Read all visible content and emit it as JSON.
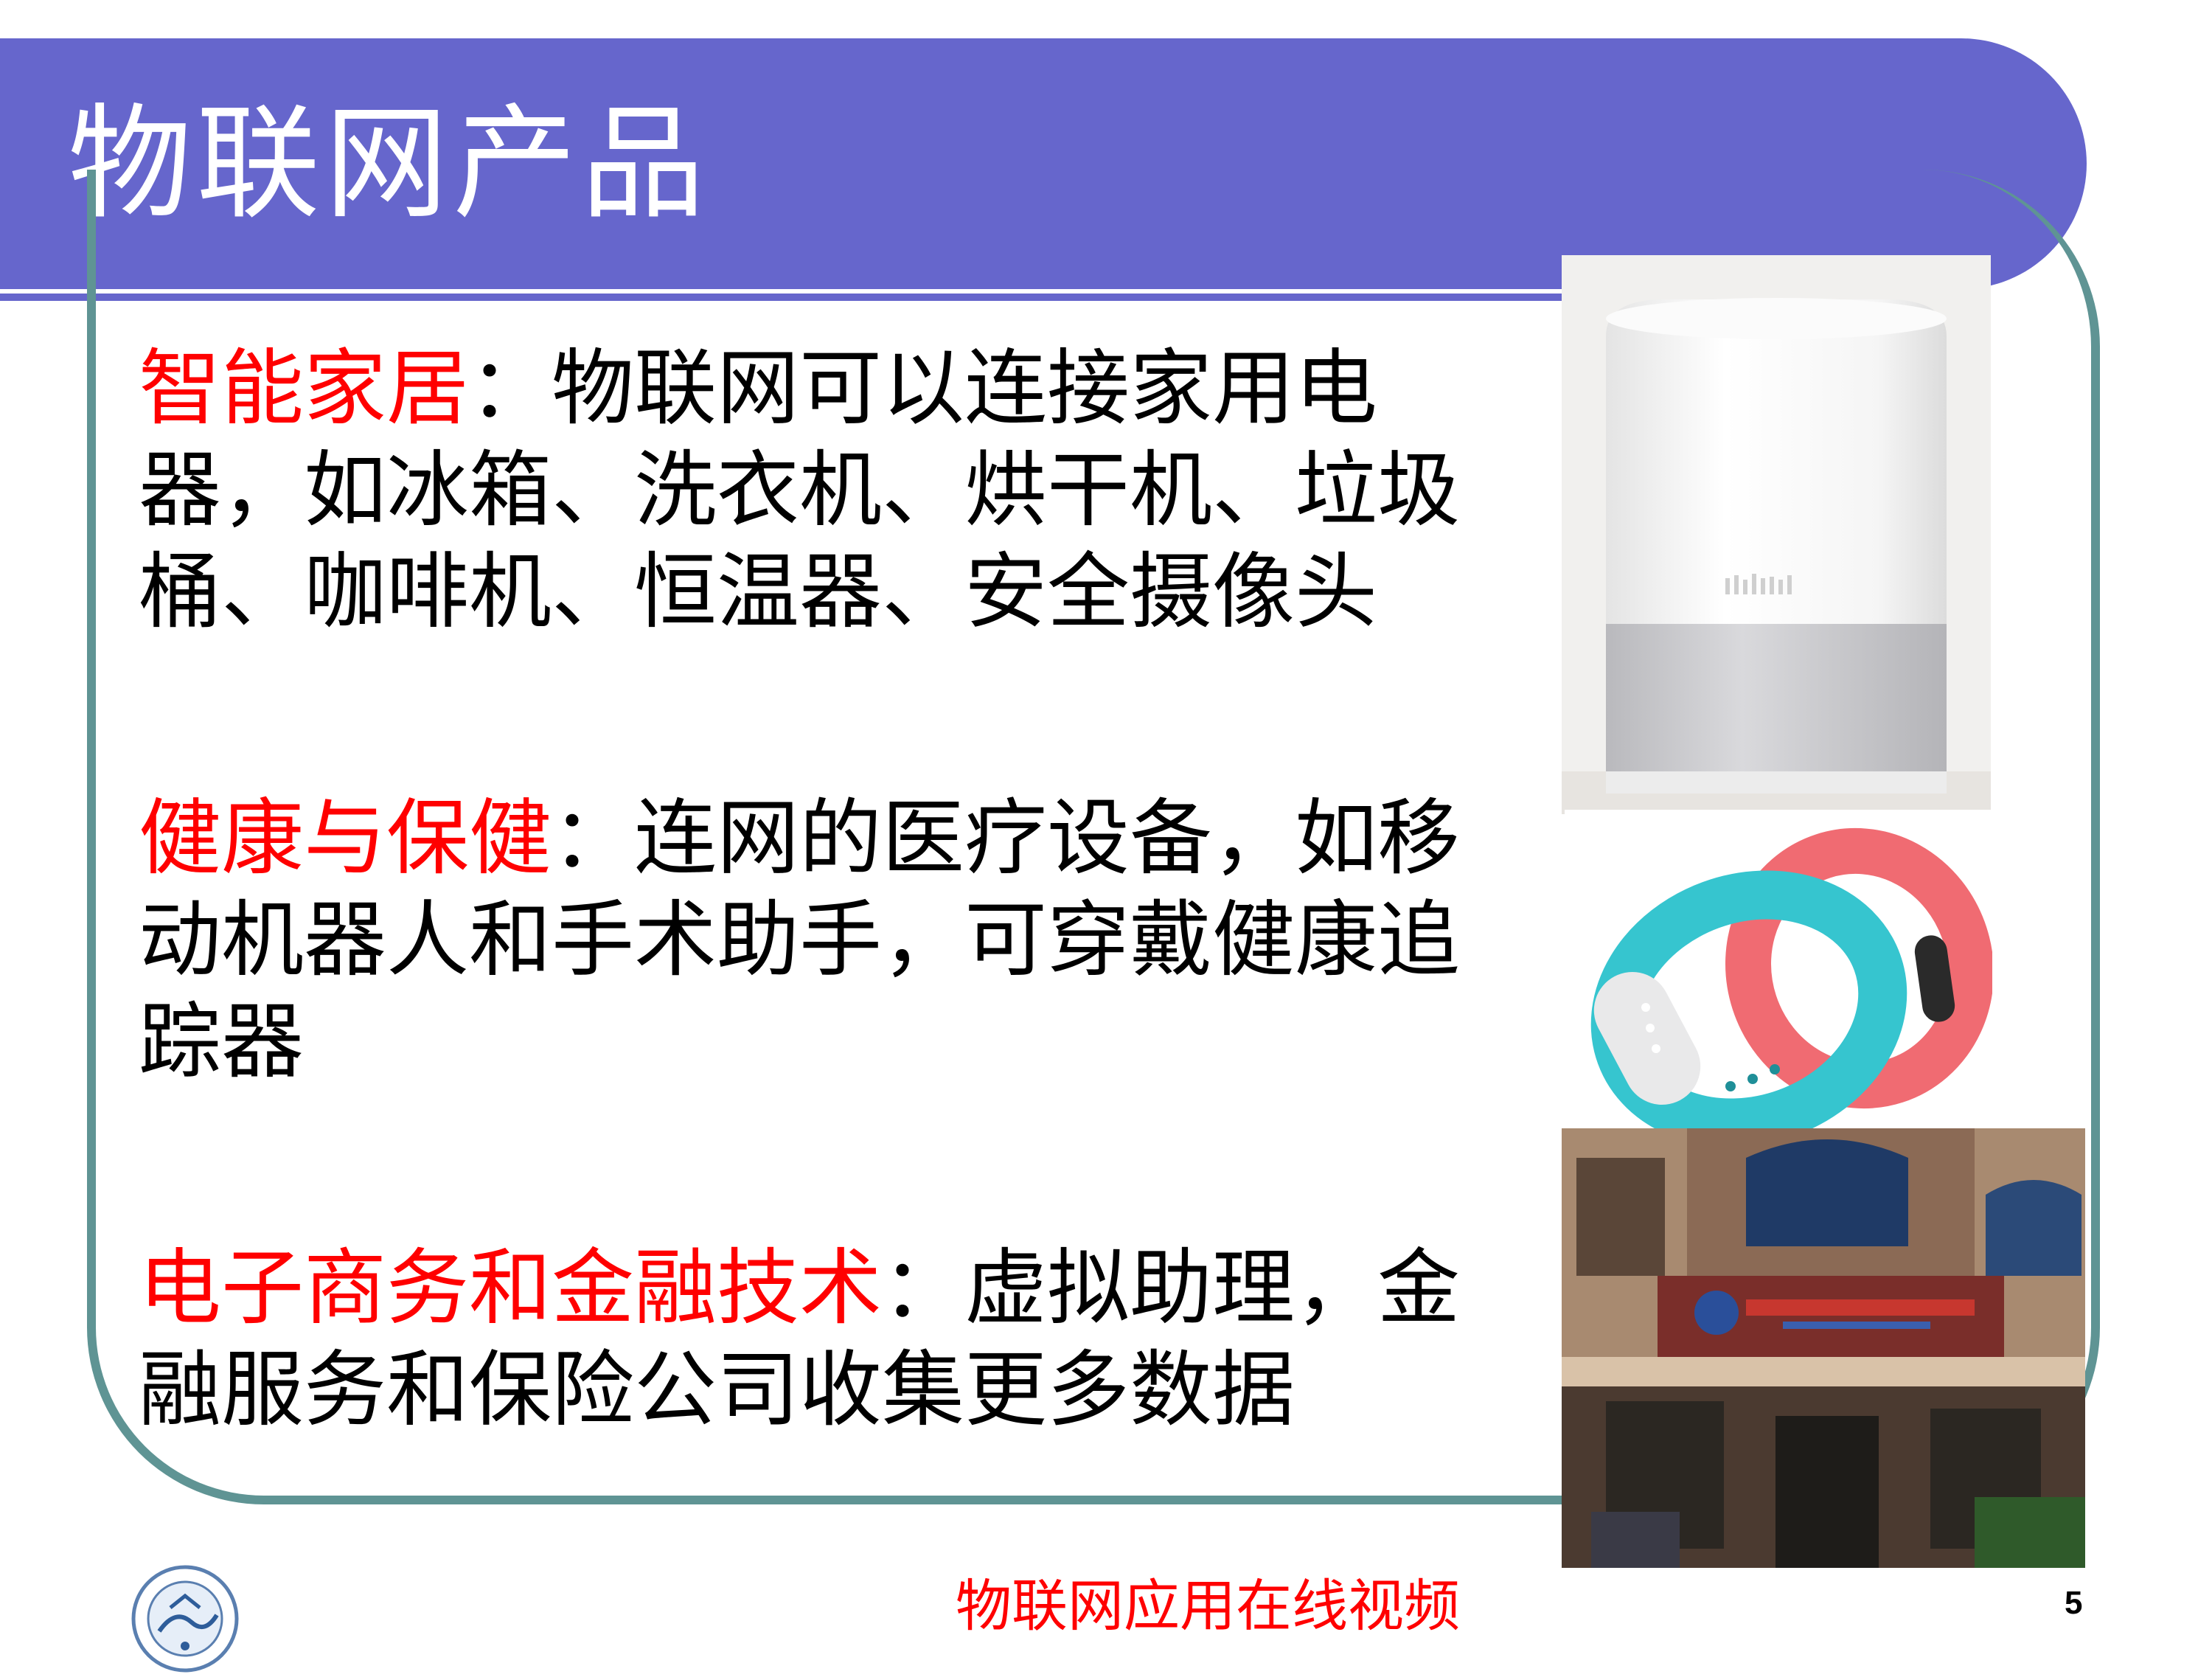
{
  "title": "物联网产品",
  "paragraphs": [
    {
      "lead": "智能家居",
      "body": "：物联网可以连接家用电器，如冰箱、洗衣机、烘干机、垃圾桶、咖啡机、恒温器、安全摄像头"
    },
    {
      "lead": "健康与保健",
      "body": "：连网的医疗设备，如移动机器人和手术助手，可穿戴健康追踪器"
    },
    {
      "lead": "电子商务和金融技术",
      "body": "：虚拟助理，金融服务和保险公司收集更多数据"
    }
  ],
  "images": {
    "speaker": "smart-speaker-photo",
    "band": "fitness-band-photo",
    "building": "building-photo"
  },
  "footer": {
    "caption": "物联网应用在线视频",
    "page_number": "5"
  },
  "colors": {
    "banner": "#6666cc",
    "frame": "#5f9494",
    "highlight": "#ff0000"
  }
}
